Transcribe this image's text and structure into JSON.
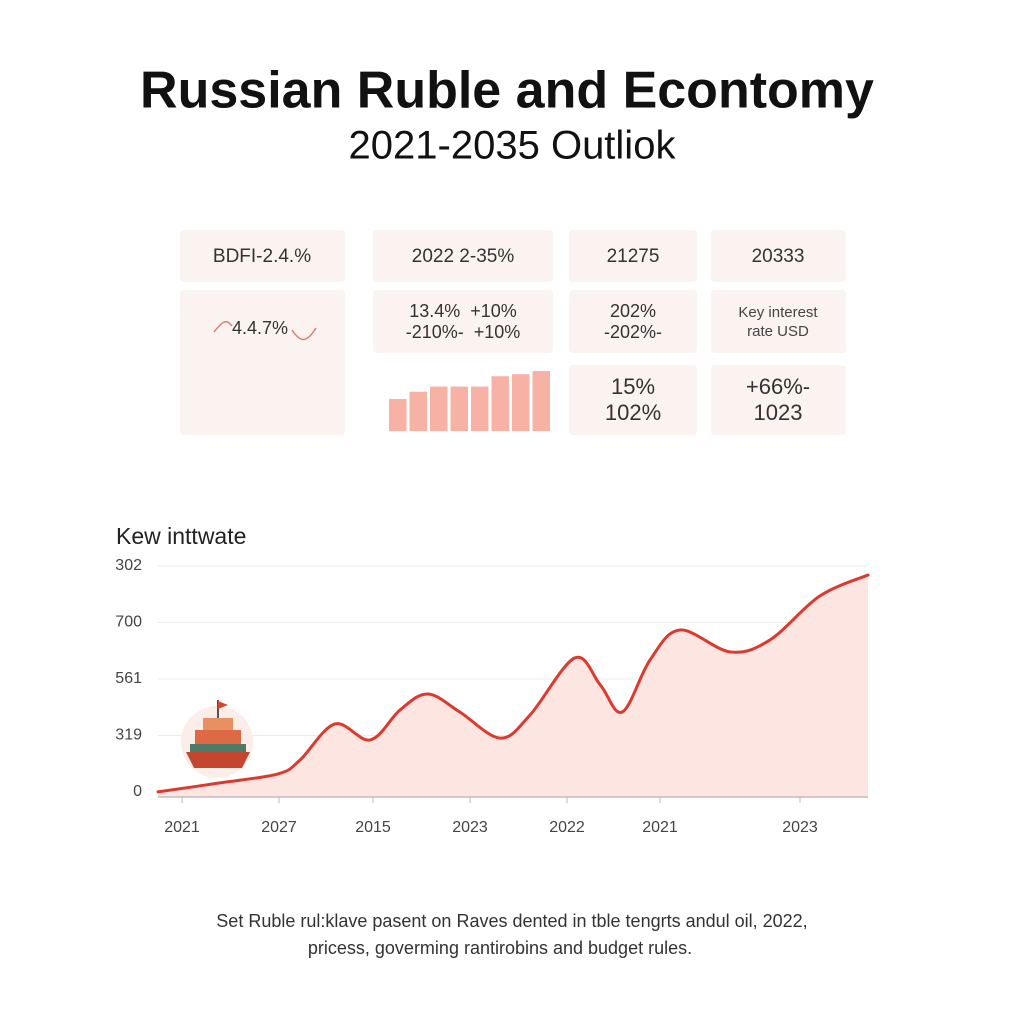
{
  "header": {
    "title": "Russian Ruble and Econtomy",
    "subtitle": "2021-2035 Outliok"
  },
  "cards": {
    "headers": [
      "BDFI-2.4.%",
      "2022 2-35%",
      "21275",
      "20333"
    ],
    "details": [
      [
        "4.4.7%"
      ],
      [
        "13.4%  +10%",
        "-210%-  +10%"
      ],
      [
        "202%",
        "-202%-"
      ],
      [
        "Key interest",
        "rate USD"
      ]
    ],
    "extras": [
      [
        "15%",
        "102%"
      ],
      [
        "+66%-",
        "1023"
      ]
    ]
  },
  "chart_data": [
    {
      "type": "line",
      "title": "Kew inttwate",
      "y_labels": [
        "0",
        "319",
        "561",
        "700",
        "302"
      ],
      "x_labels": [
        "2021",
        "2027",
        "2015",
        "2023",
        "2022",
        "2021",
        "2023"
      ],
      "x": [
        0,
        8.7,
        16.9,
        20,
        24.9,
        29.9,
        34.1,
        38,
        42.5,
        48.2,
        52.4,
        58.7,
        62.3,
        65.4,
        69.3,
        73.5,
        80.6,
        86.2,
        93.2,
        100
      ],
      "series": [
        {
          "color": "#dd3a2f",
          "values": [
            2.2,
            6.1,
            10,
            16,
            31.6,
            24.7,
            37.7,
            44.6,
            36.8,
            25.5,
            35.5,
            60.2,
            48.5,
            36.8,
            59.3,
            72.3,
            62.8,
            68,
            87,
            96.1
          ]
        }
      ],
      "xlim": [
        0,
        100
      ],
      "ylim": [
        0,
        100
      ],
      "grid": true,
      "area_color": "#fde6e1"
    },
    {
      "type": "bar",
      "values": [
        31,
        38,
        43,
        43,
        43,
        53,
        55,
        58
      ],
      "color": "#f8b2a5",
      "ylim": [
        0,
        60
      ]
    }
  ],
  "footer": {
    "lines": [
      "Set Ruble rul:klave pasent on Raves dented in tble tengrts andul oil, 2022,",
      "pricess, goverming rantirobins and budget rules."
    ]
  }
}
